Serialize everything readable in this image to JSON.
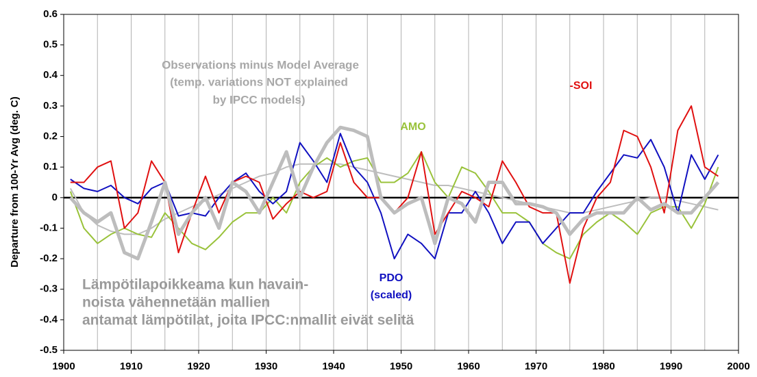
{
  "chart_data": {
    "type": "line",
    "ylabel": "Departure from 100-Yr Avg (deg. C)",
    "xlim": [
      1900,
      2000
    ],
    "xticks": [
      1900,
      1910,
      1920,
      1930,
      1940,
      1950,
      1960,
      1970,
      1980,
      1990,
      2000
    ],
    "x_minor_grid": [
      1905,
      1915,
      1925,
      1935,
      1945,
      1955,
      1965,
      1975,
      1985,
      1995
    ],
    "ylim": [
      -0.5,
      0.6
    ],
    "yticks": [
      -0.5,
      -0.4,
      -0.3,
      -0.2,
      -0.1,
      0,
      0.1,
      0.2,
      0.3,
      0.4,
      0.5,
      0.6
    ],
    "grid": "x",
    "x": [
      1901,
      1903,
      1905,
      1907,
      1909,
      1911,
      1913,
      1915,
      1917,
      1919,
      1921,
      1923,
      1925,
      1927,
      1929,
      1931,
      1933,
      1935,
      1937,
      1939,
      1941,
      1943,
      1945,
      1947,
      1949,
      1951,
      1953,
      1955,
      1957,
      1959,
      1961,
      1963,
      1965,
      1967,
      1969,
      1971,
      1973,
      1975,
      1977,
      1979,
      1981,
      1983,
      1985,
      1987,
      1989,
      1991,
      1993,
      1995,
      1997
    ],
    "series": [
      {
        "name": "AMO",
        "color": "#99c23a",
        "width": 2,
        "values": [
          0.02,
          -0.1,
          -0.15,
          -0.12,
          -0.1,
          -0.12,
          -0.13,
          -0.05,
          -0.1,
          -0.15,
          -0.17,
          -0.13,
          -0.08,
          -0.05,
          -0.05,
          0.0,
          -0.05,
          0.05,
          0.1,
          0.13,
          0.1,
          0.12,
          0.13,
          0.05,
          0.05,
          0.08,
          0.15,
          0.05,
          0.0,
          0.1,
          0.08,
          0.02,
          -0.05,
          -0.05,
          -0.08,
          -0.15,
          -0.18,
          -0.2,
          -0.12,
          -0.08,
          -0.05,
          -0.08,
          -0.12,
          -0.05,
          -0.03,
          -0.03,
          -0.1,
          -0.02,
          0.1
        ]
      },
      {
        "name": "PDO",
        "color": "#1010c0",
        "width": 2,
        "values": [
          0.06,
          0.03,
          0.02,
          0.04,
          0.0,
          -0.02,
          0.03,
          0.05,
          -0.06,
          -0.05,
          -0.06,
          0.0,
          0.05,
          0.08,
          0.02,
          -0.02,
          0.02,
          0.18,
          0.12,
          0.05,
          0.21,
          0.1,
          0.05,
          -0.05,
          -0.2,
          -0.12,
          -0.15,
          -0.2,
          -0.05,
          -0.05,
          0.02,
          -0.05,
          -0.15,
          -0.08,
          -0.08,
          -0.15,
          -0.1,
          -0.05,
          -0.05,
          0.02,
          0.08,
          0.14,
          0.13,
          0.19,
          0.1,
          -0.05,
          0.14,
          0.06,
          0.14
        ]
      },
      {
        "name": "-SOI",
        "color": "#e01010",
        "width": 2,
        "values": [
          0.05,
          0.05,
          0.1,
          0.12,
          -0.1,
          -0.05,
          0.12,
          0.05,
          -0.18,
          -0.05,
          0.07,
          -0.05,
          0.05,
          0.07,
          0.05,
          -0.07,
          -0.02,
          0.02,
          0.0,
          0.02,
          0.18,
          0.05,
          0.0,
          0.0,
          -0.05,
          0.0,
          0.15,
          -0.12,
          -0.05,
          0.02,
          0.0,
          -0.03,
          0.12,
          0.05,
          -0.03,
          -0.05,
          -0.05,
          -0.28,
          -0.1,
          0.0,
          0.05,
          0.22,
          0.2,
          0.1,
          -0.05,
          0.22,
          0.3,
          0.1,
          0.07
        ]
      },
      {
        "name": "Observations minus Model Average",
        "color": "#bdbdbd",
        "width": 5,
        "values": [
          0.0,
          -0.05,
          -0.08,
          -0.05,
          -0.18,
          -0.2,
          -0.08,
          0.05,
          -0.12,
          -0.05,
          0.0,
          -0.1,
          0.05,
          0.02,
          -0.05,
          0.05,
          0.15,
          0.0,
          0.1,
          0.18,
          0.23,
          0.22,
          0.2,
          0.0,
          -0.05,
          -0.02,
          0.0,
          -0.15,
          0.0,
          -0.02,
          -0.08,
          0.05,
          0.05,
          -0.02,
          -0.02,
          -0.03,
          -0.05,
          -0.12,
          -0.07,
          -0.05,
          -0.05,
          -0.05,
          0.0,
          -0.04,
          -0.02,
          -0.05,
          -0.05,
          0.0,
          0.05
        ],
        "smoothed_values": [
          0.03,
          -0.05,
          -0.09,
          -0.11,
          -0.12,
          -0.12,
          -0.1,
          -0.07,
          -0.05,
          -0.03,
          -0.01,
          0.01,
          0.03,
          0.05,
          0.07,
          0.08,
          0.1,
          0.11,
          0.11,
          0.11,
          0.11,
          0.1,
          0.09,
          0.08,
          0.07,
          0.06,
          0.05,
          0.04,
          0.04,
          0.03,
          0.02,
          0.01,
          0.0,
          -0.01,
          -0.02,
          -0.03,
          -0.04,
          -0.05,
          -0.05,
          -0.04,
          -0.03,
          -0.02,
          -0.01,
          0.0,
          0.0,
          -0.01,
          -0.02,
          -0.03,
          -0.04
        ]
      }
    ],
    "annotations": [
      "(temp. variations NOT explained",
      "by IPCC models)",
      "(scaled)",
      "Lämpötilapoikkeama kun havain-",
      "noista vähennetään mallien",
      "antamat lämpötilat, joita IPCC:nmallit eivät selitä"
    ]
  }
}
